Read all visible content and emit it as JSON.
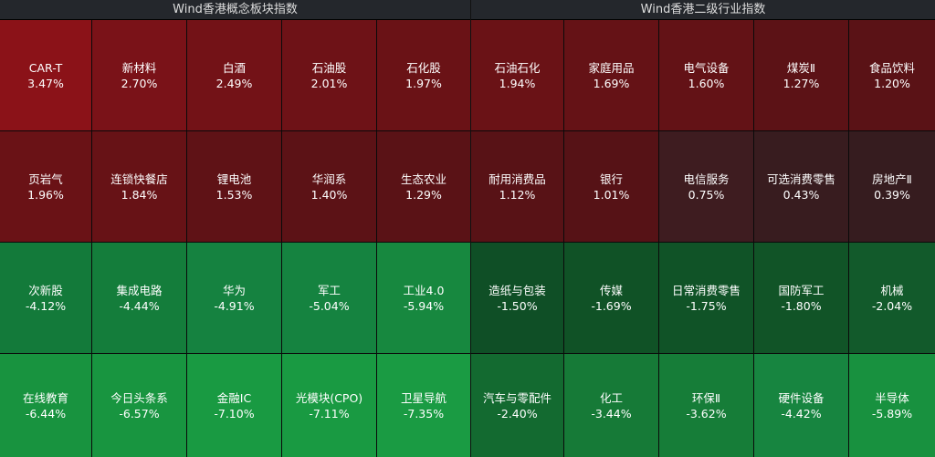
{
  "panels": [
    {
      "title": "Wind香港概念板块指数",
      "tiles": [
        {
          "name": "CAR-T",
          "change": "3.47%",
          "color": "#8b1218"
        },
        {
          "name": "新材料",
          "change": "2.70%",
          "color": "#7a1218"
        },
        {
          "name": "白酒",
          "change": "2.49%",
          "color": "#731217"
        },
        {
          "name": "石油股",
          "change": "2.01%",
          "color": "#6e1217"
        },
        {
          "name": "石化股",
          "change": "1.97%",
          "color": "#6a1216"
        },
        {
          "name": "页岩气",
          "change": "1.96%",
          "color": "#6a1216"
        },
        {
          "name": "连锁快餐店",
          "change": "1.84%",
          "color": "#671216"
        },
        {
          "name": "锂电池",
          "change": "1.53%",
          "color": "#5f1216"
        },
        {
          "name": "华润系",
          "change": "1.40%",
          "color": "#5c1216"
        },
        {
          "name": "生态农业",
          "change": "1.29%",
          "color": "#5a1216"
        },
        {
          "name": "次新股",
          "change": "-4.12%",
          "color": "#137a3a"
        },
        {
          "name": "集成电路",
          "change": "-4.44%",
          "color": "#147d3b"
        },
        {
          "name": "华为",
          "change": "-4.91%",
          "color": "#158240"
        },
        {
          "name": "军工",
          "change": "-5.04%",
          "color": "#158340"
        },
        {
          "name": "工业4.0",
          "change": "-5.94%",
          "color": "#17883f"
        },
        {
          "name": "在线教育",
          "change": "-6.44%",
          "color": "#18933f"
        },
        {
          "name": "今日头条系",
          "change": "-6.57%",
          "color": "#189540"
        },
        {
          "name": "金融IC",
          "change": "-7.10%",
          "color": "#199a42"
        },
        {
          "name": "光模块(CPO)",
          "change": "-7.11%",
          "color": "#199a42"
        },
        {
          "name": "卫星导航",
          "change": "-7.35%",
          "color": "#1a9b43"
        }
      ]
    },
    {
      "title": "Wind香港二级行业指数",
      "tiles": [
        {
          "name": "石油石化",
          "change": "1.94%",
          "color": "#6a1216"
        },
        {
          "name": "家庭用品",
          "change": "1.69%",
          "color": "#651216"
        },
        {
          "name": "电气设备",
          "change": "1.60%",
          "color": "#631216"
        },
        {
          "name": "煤炭Ⅱ",
          "change": "1.27%",
          "color": "#5c1216"
        },
        {
          "name": "食品饮料",
          "change": "1.20%",
          "color": "#5a1216"
        },
        {
          "name": "耐用消费品",
          "change": "1.12%",
          "color": "#581216"
        },
        {
          "name": "银行",
          "change": "1.01%",
          "color": "#561216"
        },
        {
          "name": "电信服务",
          "change": "0.75%",
          "color": "#3e1c20"
        },
        {
          "name": "可选消费零售",
          "change": "0.43%",
          "color": "#381c1f"
        },
        {
          "name": "房地产Ⅱ",
          "change": "0.39%",
          "color": "#361c1f"
        },
        {
          "name": "造纸与包装",
          "change": "-1.50%",
          "color": "#0f4f26"
        },
        {
          "name": "传媒",
          "change": "-1.69%",
          "color": "#105226"
        },
        {
          "name": "日常消费零售",
          "change": "-1.75%",
          "color": "#105327"
        },
        {
          "name": "国防军工",
          "change": "-1.80%",
          "color": "#115427"
        },
        {
          "name": "机械",
          "change": "-2.04%",
          "color": "#125a2b"
        },
        {
          "name": "汽车与零配件",
          "change": "-2.40%",
          "color": "#136a30"
        },
        {
          "name": "化工",
          "change": "-3.44%",
          "color": "#167a37"
        },
        {
          "name": "环保Ⅱ",
          "change": "-3.62%",
          "color": "#167d38"
        },
        {
          "name": "硬件设备",
          "change": "-4.42%",
          "color": "#178540"
        },
        {
          "name": "半导体",
          "change": "-5.89%",
          "color": "#18913f"
        }
      ]
    }
  ]
}
